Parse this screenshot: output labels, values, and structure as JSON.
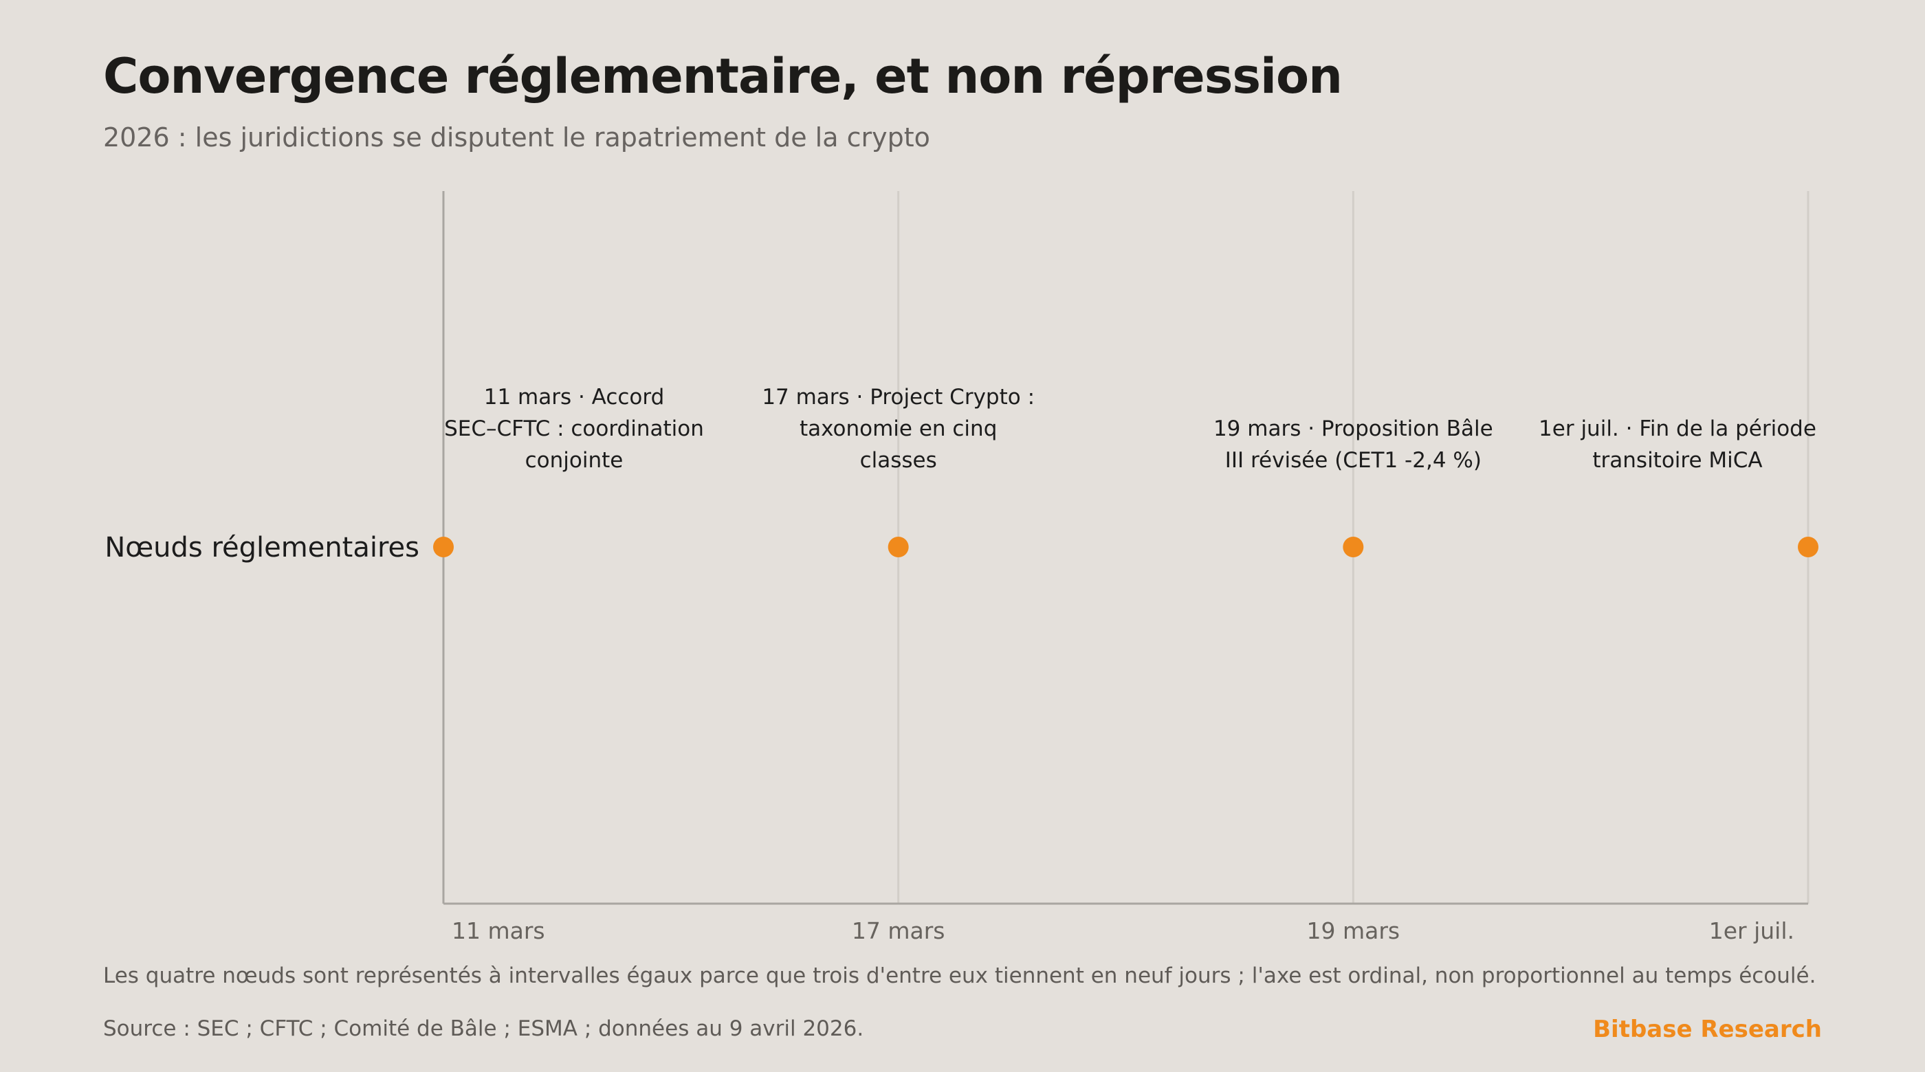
{
  "header": {
    "title": "Convergence réglementaire, et non répression",
    "subtitle": "2026 : les juridictions se disputent le rapatriement de la crypto"
  },
  "chart_data": {
    "type": "scatter",
    "y_category": "Nœuds réglementaires",
    "x_axis_scale": "ordinal",
    "categories": [
      "11 mars",
      "17 mars",
      "19 mars",
      "1er juil."
    ],
    "events": [
      {
        "tick": "11 mars",
        "label_lines": [
          "11 mars · Accord",
          "SEC–CFTC : coordination",
          "conjointe"
        ]
      },
      {
        "tick": "17 mars",
        "label_lines": [
          "17 mars · Project Crypto :",
          "taxonomie en cinq",
          "classes"
        ]
      },
      {
        "tick": "19 mars",
        "label_lines": [
          "19 mars · Proposition Bâle",
          "III révisée (CET1 -2,4 %)"
        ]
      },
      {
        "tick": "1er juil.",
        "label_lines": [
          "1er juil. · Fin de la période",
          "transitoire MiCA"
        ]
      }
    ],
    "grid": true,
    "legend": "none"
  },
  "footer": {
    "note": "Les quatre nœuds sont représentés à intervalles égaux parce que trois d'entre eux tiennent en neuf jours ; l'axe est ordinal, non proportionnel au temps écoulé.",
    "source": "Source : SEC ; CFTC ; Comité de Bâle ; ESMA ; données au 9 avril 2026.",
    "brand": "Bitbase Research"
  },
  "colors": {
    "background": "#e4e0db",
    "accent": "#f08a1c",
    "grid": "#d2cec8",
    "axis": "#a9a6a1"
  }
}
